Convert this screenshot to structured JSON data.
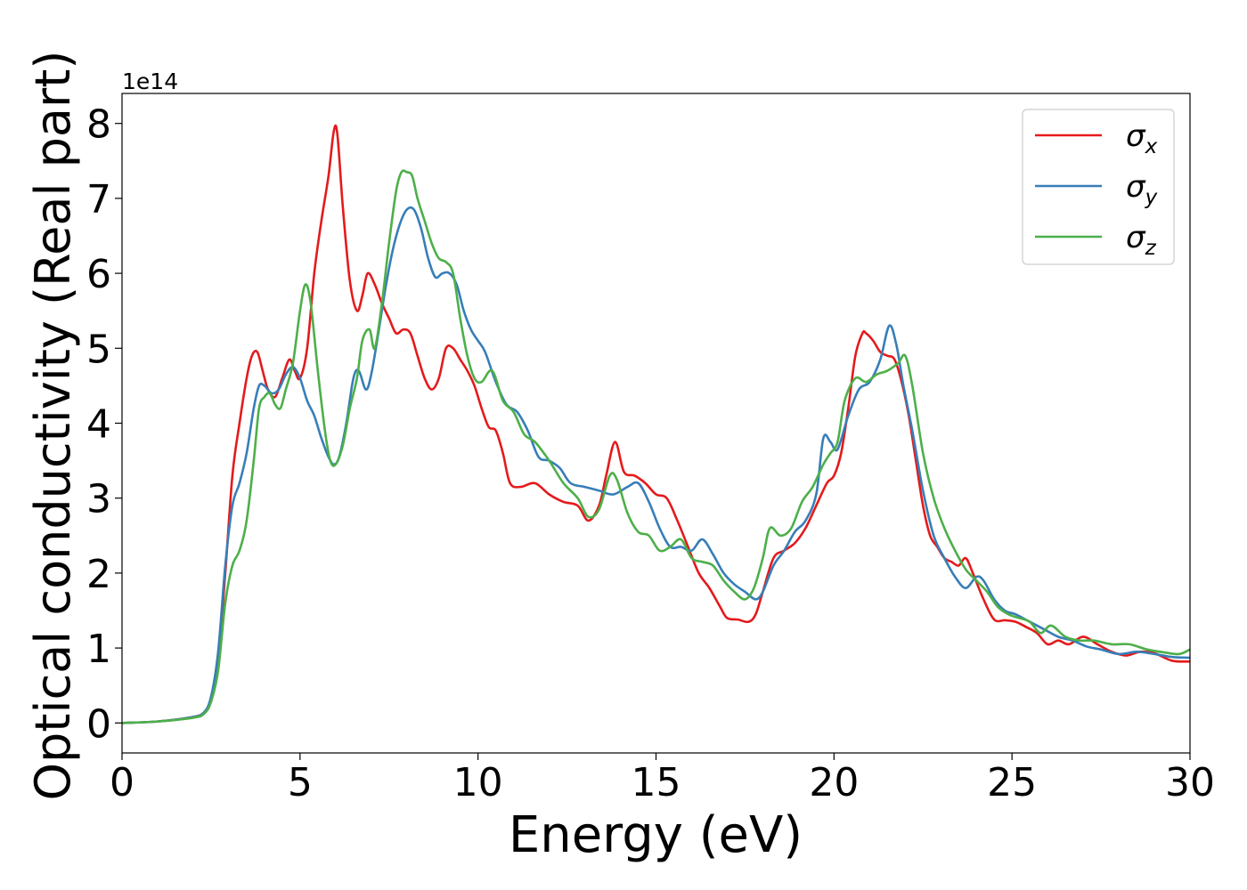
{
  "chart_data": {
    "type": "line",
    "xlabel": "Energy (eV)",
    "ylabel": "Optical conductivity (Real part)",
    "offset_text": "1e14",
    "xlim": [
      0,
      30
    ],
    "ylim": [
      -0.4,
      8.4
    ],
    "xticks": [
      0,
      5,
      10,
      15,
      20,
      25,
      30
    ],
    "xtick_labels": [
      "0",
      "5",
      "10",
      "15",
      "20",
      "25",
      "30"
    ],
    "yticks": [
      0,
      1,
      2,
      3,
      4,
      5,
      6,
      7,
      8
    ],
    "ytick_labels": [
      "0",
      "1",
      "2",
      "3",
      "4",
      "5",
      "6",
      "7",
      "8"
    ],
    "grid": false,
    "legend_position": "top-right",
    "series": [
      {
        "name": "σx",
        "base": "σ",
        "sub": "x",
        "color": "#e41a1c",
        "x": [
          0,
          1,
          2,
          2.3,
          2.5,
          2.7,
          2.9,
          3.1,
          3.3,
          3.5,
          3.65,
          3.8,
          3.95,
          4.1,
          4.3,
          4.5,
          4.7,
          4.85,
          5.0,
          5.2,
          5.4,
          5.6,
          5.8,
          5.95,
          6.05,
          6.2,
          6.4,
          6.6,
          6.75,
          6.9,
          7.1,
          7.3,
          7.5,
          7.7,
          7.9,
          8.1,
          8.3,
          8.5,
          8.7,
          8.9,
          9.1,
          9.3,
          9.5,
          9.7,
          9.9,
          10.1,
          10.3,
          10.5,
          10.7,
          10.9,
          11.2,
          11.6,
          12.0,
          12.4,
          12.8,
          13.1,
          13.4,
          13.6,
          13.85,
          14.1,
          14.4,
          14.7,
          15.0,
          15.3,
          15.6,
          15.9,
          16.2,
          16.5,
          16.8,
          17.0,
          17.3,
          17.6,
          17.8,
          18.0,
          18.3,
          18.6,
          18.9,
          19.2,
          19.5,
          19.8,
          20.0,
          20.2,
          20.4,
          20.6,
          20.8,
          20.9,
          21.1,
          21.3,
          21.5,
          21.7,
          21.9,
          22.1,
          22.3,
          22.5,
          22.7,
          22.9,
          23.1,
          23.3,
          23.5,
          23.7,
          23.9,
          24.2,
          24.5,
          24.8,
          25.1,
          25.4,
          25.7,
          26.0,
          26.3,
          26.6,
          27.0,
          27.4,
          27.8,
          28.2,
          28.6,
          29.0,
          29.5,
          30.0
        ],
        "y": [
          0,
          0.02,
          0.08,
          0.14,
          0.3,
          0.85,
          2.0,
          3.3,
          4.0,
          4.6,
          4.9,
          4.95,
          4.7,
          4.45,
          4.35,
          4.6,
          4.85,
          4.7,
          4.6,
          5.0,
          6.0,
          6.7,
          7.3,
          7.9,
          7.85,
          6.9,
          5.9,
          5.5,
          5.7,
          6.0,
          5.85,
          5.6,
          5.4,
          5.2,
          5.25,
          5.2,
          4.9,
          4.6,
          4.45,
          4.6,
          5.0,
          5.0,
          4.85,
          4.7,
          4.5,
          4.2,
          3.95,
          3.9,
          3.6,
          3.2,
          3.15,
          3.2,
          3.05,
          2.95,
          2.9,
          2.7,
          2.9,
          3.3,
          3.75,
          3.35,
          3.3,
          3.2,
          3.05,
          3.0,
          2.7,
          2.35,
          2.0,
          1.8,
          1.55,
          1.4,
          1.38,
          1.35,
          1.45,
          1.75,
          2.2,
          2.3,
          2.4,
          2.6,
          2.9,
          3.2,
          3.3,
          3.6,
          4.2,
          4.9,
          5.2,
          5.2,
          5.1,
          4.95,
          4.9,
          4.85,
          4.55,
          4.1,
          3.5,
          2.9,
          2.5,
          2.35,
          2.2,
          2.15,
          2.1,
          2.2,
          2.0,
          1.65,
          1.38,
          1.37,
          1.35,
          1.28,
          1.2,
          1.05,
          1.1,
          1.05,
          1.15,
          1.05,
          0.95,
          0.9,
          0.95,
          0.93,
          0.83,
          0.82
        ]
      },
      {
        "name": "σy",
        "base": "σ",
        "sub": "y",
        "color": "#377eb8",
        "x": [
          0,
          1,
          2,
          2.3,
          2.5,
          2.7,
          2.9,
          3.1,
          3.3,
          3.5,
          3.7,
          3.85,
          4.0,
          4.2,
          4.4,
          4.6,
          4.8,
          5.0,
          5.2,
          5.4,
          5.6,
          5.8,
          5.95,
          6.1,
          6.3,
          6.5,
          6.65,
          6.85,
          7.0,
          7.2,
          7.4,
          7.6,
          7.8,
          8.0,
          8.2,
          8.4,
          8.6,
          8.8,
          9.0,
          9.2,
          9.4,
          9.6,
          9.8,
          10.0,
          10.2,
          10.5,
          10.8,
          11.1,
          11.4,
          11.7,
          12.0,
          12.3,
          12.6,
          13.0,
          13.4,
          13.8,
          14.2,
          14.5,
          14.8,
          15.1,
          15.4,
          15.7,
          16.0,
          16.3,
          16.6,
          16.9,
          17.2,
          17.5,
          17.8,
          18.0,
          18.3,
          18.6,
          18.9,
          19.2,
          19.5,
          19.7,
          19.9,
          20.1,
          20.4,
          20.7,
          21.0,
          21.3,
          21.55,
          21.75,
          21.95,
          22.2,
          22.5,
          22.8,
          23.1,
          23.4,
          23.7,
          24.0,
          24.2,
          24.5,
          24.8,
          25.1,
          25.5,
          25.9,
          26.3,
          26.7,
          27.1,
          27.5,
          28.0,
          28.5,
          29.0,
          29.5,
          30.0
        ],
        "y": [
          0,
          0.02,
          0.08,
          0.14,
          0.35,
          0.95,
          2.1,
          2.9,
          3.2,
          3.6,
          4.2,
          4.5,
          4.5,
          4.4,
          4.45,
          4.65,
          4.75,
          4.6,
          4.3,
          4.1,
          3.8,
          3.55,
          3.45,
          3.55,
          4.0,
          4.6,
          4.7,
          4.45,
          4.65,
          5.2,
          5.8,
          6.3,
          6.65,
          6.85,
          6.85,
          6.6,
          6.2,
          5.95,
          6.0,
          6.0,
          5.85,
          5.5,
          5.25,
          5.1,
          4.95,
          4.55,
          4.25,
          4.15,
          3.9,
          3.55,
          3.5,
          3.4,
          3.2,
          3.15,
          3.1,
          3.05,
          3.15,
          3.2,
          2.95,
          2.6,
          2.35,
          2.35,
          2.3,
          2.45,
          2.25,
          2.0,
          1.85,
          1.75,
          1.65,
          1.75,
          2.1,
          2.3,
          2.55,
          2.7,
          3.05,
          3.8,
          3.75,
          3.65,
          4.1,
          4.45,
          4.55,
          4.85,
          5.3,
          5.05,
          4.5,
          3.9,
          3.1,
          2.5,
          2.2,
          1.95,
          1.8,
          1.95,
          1.9,
          1.65,
          1.5,
          1.45,
          1.35,
          1.25,
          1.15,
          1.1,
          1.02,
          0.98,
          0.92,
          0.95,
          0.92,
          0.88,
          0.87
        ]
      },
      {
        "name": "σz",
        "base": "σ",
        "sub": "z",
        "color": "#4daf4a",
        "x": [
          0,
          1,
          2,
          2.3,
          2.5,
          2.7,
          2.9,
          3.1,
          3.3,
          3.5,
          3.7,
          3.85,
          4.0,
          4.15,
          4.3,
          4.45,
          4.6,
          4.8,
          5.0,
          5.15,
          5.3,
          5.5,
          5.7,
          5.85,
          6.0,
          6.2,
          6.4,
          6.6,
          6.75,
          6.95,
          7.1,
          7.3,
          7.5,
          7.7,
          7.85,
          8.0,
          8.15,
          8.3,
          8.5,
          8.7,
          8.9,
          9.1,
          9.3,
          9.5,
          9.7,
          9.9,
          10.1,
          10.4,
          10.7,
          11.0,
          11.3,
          11.6,
          12.0,
          12.4,
          12.8,
          13.1,
          13.4,
          13.7,
          13.9,
          14.2,
          14.5,
          14.8,
          15.1,
          15.4,
          15.7,
          16.0,
          16.3,
          16.6,
          16.9,
          17.2,
          17.5,
          17.75,
          18.0,
          18.2,
          18.5,
          18.8,
          19.1,
          19.4,
          19.7,
          19.9,
          20.1,
          20.3,
          20.6,
          20.9,
          21.2,
          21.5,
          21.8,
          22.0,
          22.2,
          22.5,
          22.8,
          23.1,
          23.4,
          23.7,
          24.0,
          24.3,
          24.6,
          24.9,
          25.2,
          25.5,
          25.8,
          26.1,
          26.5,
          26.9,
          27.3,
          27.8,
          28.3,
          28.8,
          29.3,
          29.7,
          30.0
        ],
        "y": [
          0,
          0.02,
          0.07,
          0.12,
          0.28,
          0.7,
          1.6,
          2.1,
          2.3,
          2.7,
          3.5,
          4.2,
          4.35,
          4.4,
          4.25,
          4.2,
          4.45,
          4.8,
          5.5,
          5.85,
          5.6,
          4.7,
          3.9,
          3.5,
          3.45,
          3.7,
          4.2,
          4.6,
          5.1,
          5.25,
          5.0,
          5.6,
          6.4,
          7.1,
          7.35,
          7.35,
          7.3,
          7.0,
          6.7,
          6.4,
          6.2,
          6.15,
          6.0,
          5.4,
          4.9,
          4.6,
          4.55,
          4.7,
          4.3,
          4.15,
          3.85,
          3.75,
          3.5,
          3.2,
          3.0,
          2.75,
          2.85,
          3.3,
          3.25,
          2.8,
          2.55,
          2.5,
          2.3,
          2.35,
          2.45,
          2.2,
          2.15,
          2.1,
          1.9,
          1.75,
          1.65,
          1.8,
          2.2,
          2.6,
          2.5,
          2.6,
          2.95,
          3.15,
          3.45,
          3.6,
          3.75,
          4.3,
          4.6,
          4.55,
          4.65,
          4.7,
          4.8,
          4.9,
          4.5,
          3.6,
          3.0,
          2.6,
          2.3,
          2.05,
          1.9,
          1.75,
          1.55,
          1.45,
          1.4,
          1.35,
          1.2,
          1.3,
          1.15,
          1.1,
          1.1,
          1.05,
          1.05,
          0.98,
          0.94,
          0.92,
          0.98
        ]
      }
    ]
  }
}
